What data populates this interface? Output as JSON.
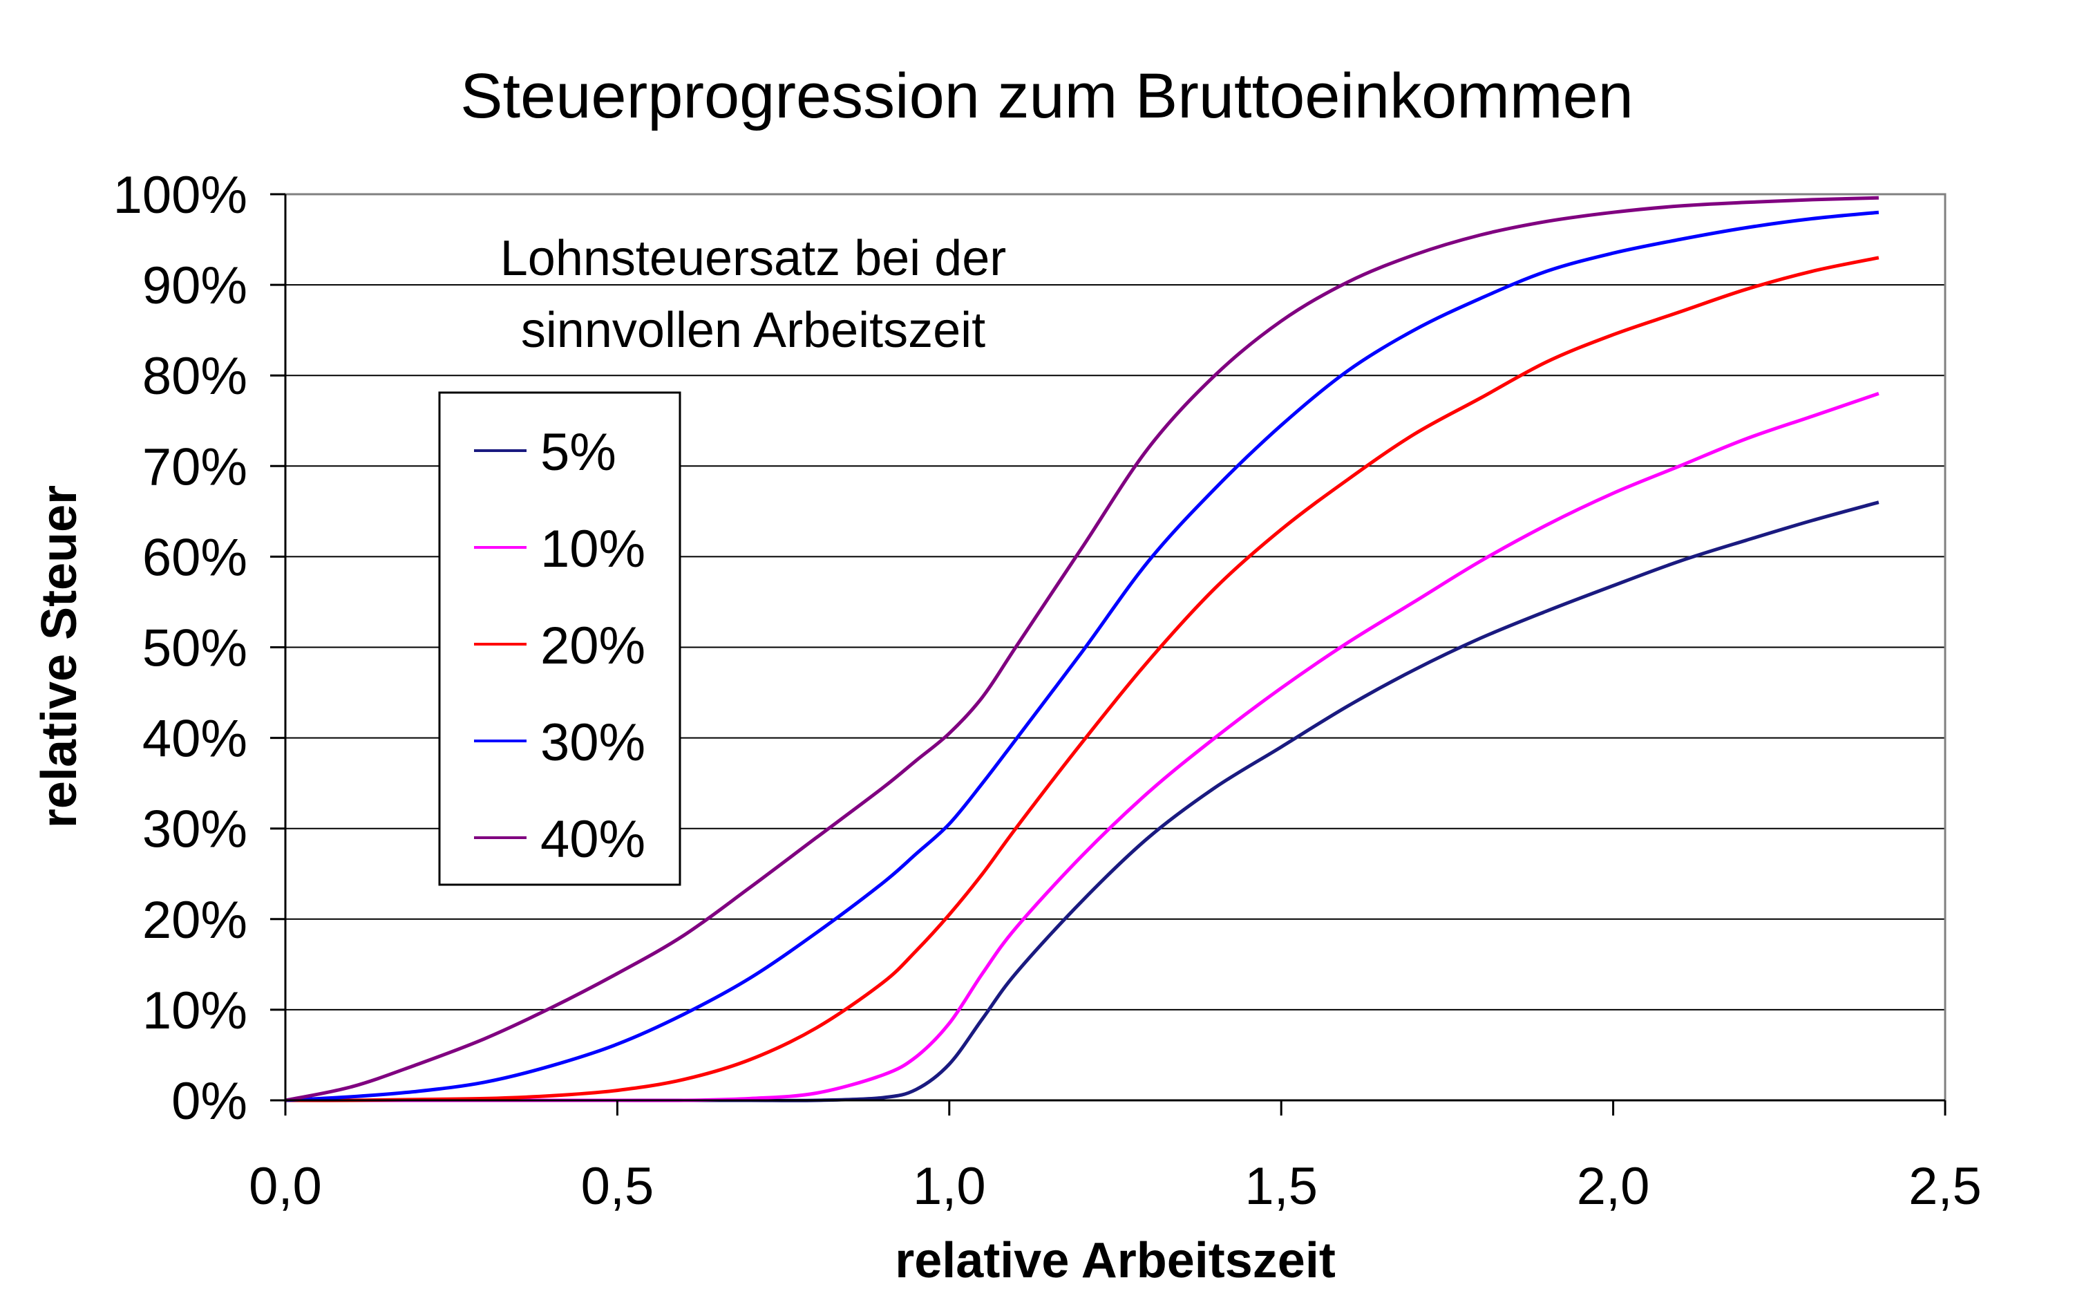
{
  "chart_data": {
    "type": "line",
    "title": "Steuerprogression zum Bruttoeinkommen",
    "xlabel": "relative Arbeitszeit",
    "ylabel": "relative Steuer",
    "xlim": [
      0,
      2.5
    ],
    "ylim": [
      0,
      100
    ],
    "x_ticks": [
      "0,0",
      "0,5",
      "1,0",
      "1,5",
      "2,0",
      "2,5"
    ],
    "y_ticks": [
      "0%",
      "10%",
      "20%",
      "30%",
      "40%",
      "50%",
      "60%",
      "70%",
      "80%",
      "90%",
      "100%"
    ],
    "grid": "horizontal",
    "legend_title": [
      "Lohnsteuersatz bei der",
      "sinnvollen Arbeitszeit"
    ],
    "legend_position": "top-left",
    "x": [
      0.0,
      0.1,
      0.2,
      0.3,
      0.4,
      0.5,
      0.6,
      0.7,
      0.8,
      0.9,
      0.95,
      1.0,
      1.05,
      1.1,
      1.2,
      1.3,
      1.4,
      1.5,
      1.6,
      1.7,
      1.8,
      1.9,
      2.0,
      2.1,
      2.2,
      2.3,
      2.4
    ],
    "series": [
      {
        "name": "5%",
        "color": "#1a1a80",
        "values": [
          0,
          0,
          0,
          0,
          0,
          0,
          0,
          0,
          0,
          0.3,
          1.2,
          4,
          9,
          14,
          22,
          29,
          34.5,
          39,
          43.5,
          47.5,
          51,
          54,
          56.8,
          59.5,
          61.8,
          64,
          66
        ]
      },
      {
        "name": "10%",
        "color": "#ff00ff",
        "values": [
          0,
          0,
          0,
          0,
          0,
          0,
          0,
          0.2,
          0.8,
          2.8,
          4.8,
          8.5,
          14,
          19,
          27,
          34,
          40,
          45.5,
          50.5,
          55,
          59.5,
          63.5,
          67,
          70,
          73,
          75.5,
          78
        ]
      },
      {
        "name": "20%",
        "color": "#ff0000",
        "values": [
          0,
          0,
          0.1,
          0.2,
          0.5,
          1.1,
          2.3,
          4.5,
          8,
          13,
          16.5,
          20.5,
          25,
          30,
          39.5,
          48.5,
          56.5,
          63,
          68.5,
          73.5,
          77.5,
          81.5,
          84.5,
          87,
          89.5,
          91.5,
          93
        ]
      },
      {
        "name": "30%",
        "color": "#0000ff",
        "values": [
          0,
          0.4,
          1,
          2,
          3.8,
          6.2,
          9.5,
          13.5,
          18.5,
          24,
          27.2,
          30.5,
          35,
          39.8,
          49.5,
          59.5,
          67.5,
          74.5,
          80.5,
          85,
          88.5,
          91.5,
          93.5,
          95,
          96.3,
          97.3,
          98
        ]
      },
      {
        "name": "40%",
        "color": "#800080",
        "values": [
          0,
          1.5,
          4,
          6.8,
          10.2,
          14,
          18.2,
          23.5,
          29,
          34.5,
          37.5,
          40.5,
          44.5,
          50,
          61,
          72,
          80,
          86,
          90.3,
          93.3,
          95.5,
          97,
          98,
          98.7,
          99.1,
          99.4,
          99.6
        ]
      }
    ]
  }
}
